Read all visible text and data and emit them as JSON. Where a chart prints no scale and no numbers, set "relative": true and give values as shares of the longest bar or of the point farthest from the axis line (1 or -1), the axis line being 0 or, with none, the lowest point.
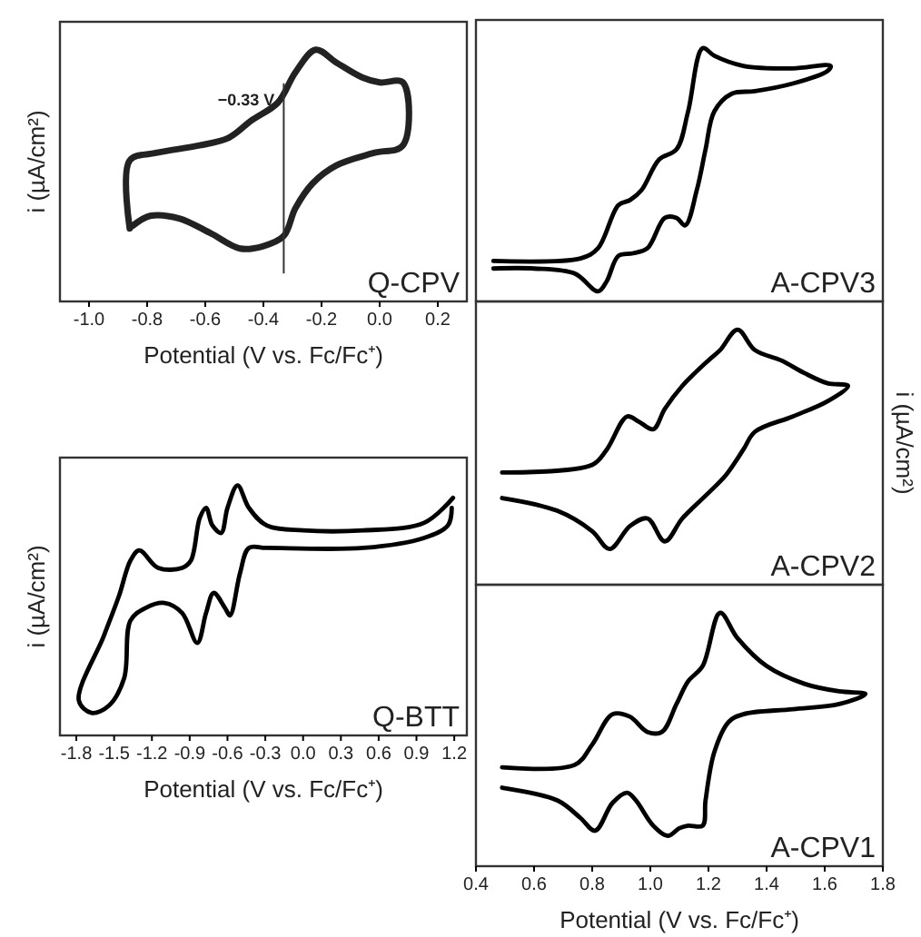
{
  "chart_data": [
    {
      "type": "line",
      "relative": true,
      "xlabel": "Potential (V vs. Fc/Fc⁺)",
      "ylabel": "i (µA/cm²)",
      "xlim": [
        -1.1,
        0.3
      ],
      "xticks": [
        {
          "value": -1,
          "label": "-1.0"
        },
        {
          "value": -0.8,
          "label": "-0.8"
        },
        {
          "value": -0.6,
          "label": "-0.6"
        },
        {
          "value": -0.4,
          "label": "-0.4"
        },
        {
          "value": -0.2,
          "label": "-0.2"
        },
        {
          "value": 0,
          "label": "0.0"
        },
        {
          "value": 0.2,
          "label": "0.2"
        }
      ],
      "series": [
        {
          "color": "#222222",
          "x": [
            -0.86,
            -0.86,
            -0.77,
            -0.62,
            -0.52,
            -0.44,
            -0.35,
            -0.29,
            -0.22,
            -0.15,
            -0.06,
            0.0,
            0.08,
            0.08,
            -0.02,
            -0.15,
            -0.23,
            -0.29,
            -0.33,
            -0.4,
            -0.48,
            -0.58,
            -0.69,
            -0.79,
            -0.85
          ],
          "values": [
            0.29,
            0.56,
            0.59,
            0.62,
            0.65,
            0.72,
            0.79,
            0.91,
            1,
            0.95,
            0.89,
            0.87,
            0.87,
            0.62,
            0.59,
            0.54,
            0.47,
            0.37,
            0.26,
            0.22,
            0.21,
            0.27,
            0.33,
            0.34,
            0.3
          ]
        }
      ],
      "ref_lines": [
        {
          "axis": "x",
          "value": -0.33,
          "label": "−0.33 V",
          "color": "#333333"
        }
      ],
      "annotations": [
        "Q-CPV"
      ]
    },
    {
      "type": "line",
      "relative": true,
      "xlim": [
        0.4,
        1.8
      ],
      "series": [
        {
          "color": "#000000",
          "x": [
            0.46,
            0.76,
            0.82,
            0.89,
            0.93,
            0.97,
            1.03,
            1.09,
            1.13,
            1.18,
            1.22,
            1.32,
            1.49,
            1.62,
            1.61,
            1.49,
            1.36,
            1.28,
            1.22,
            1.19,
            1.16,
            1.12,
            1.09,
            1.05,
            0.99,
            0.94,
            0.89,
            0.85,
            0.82,
            0.74,
            0.6,
            0.46
          ],
          "values": [
            0.16,
            0.17,
            0.21,
            0.38,
            0.4,
            0.44,
            0.56,
            0.6,
            0.75,
            1,
            0.97,
            0.93,
            0.92,
            0.93,
            0.91,
            0.86,
            0.83,
            0.82,
            0.75,
            0.6,
            0.44,
            0.3,
            0.33,
            0.33,
            0.21,
            0.19,
            0.18,
            0.08,
            0.04,
            0.11,
            0.13,
            0.13
          ]
        }
      ],
      "annotations": [
        "A-CPV3"
      ]
    },
    {
      "type": "line",
      "relative": true,
      "ylabel": "i (µA/cm²)",
      "xlim": [
        0.4,
        1.8
      ],
      "series": [
        {
          "color": "#000000",
          "x": [
            0.49,
            0.8,
            0.85,
            0.92,
            0.96,
            1.01,
            1.05,
            1.11,
            1.2,
            1.24,
            1.3,
            1.36,
            1.45,
            1.53,
            1.61,
            1.68,
            1.61,
            1.49,
            1.36,
            1.32,
            1.26,
            1.2,
            1.11,
            1.05,
            0.99,
            0.93,
            0.86,
            0.8,
            0.68,
            0.49
          ],
          "values": [
            0.44,
            0.47,
            0.53,
            0.66,
            0.64,
            0.61,
            0.69,
            0.78,
            0.88,
            0.92,
            1,
            0.92,
            0.88,
            0.83,
            0.79,
            0.78,
            0.72,
            0.66,
            0.6,
            0.53,
            0.43,
            0.36,
            0.26,
            0.17,
            0.26,
            0.23,
            0.14,
            0.21,
            0.29,
            0.34
          ]
        }
      ],
      "annotations": [
        "A-CPV2"
      ]
    },
    {
      "type": "line",
      "relative": true,
      "xlabel": "Potential (V vs. Fc/Fc⁺)",
      "ylabel": "i (µA/cm²)",
      "xlim": [
        -1.93,
        1.3
      ],
      "xticks": [
        {
          "value": -1.8,
          "label": "-1.8"
        },
        {
          "value": -1.5,
          "label": "-1.5"
        },
        {
          "value": -1.2,
          "label": "-1.2"
        },
        {
          "value": -0.9,
          "label": "-0.9"
        },
        {
          "value": -0.6,
          "label": "-0.6"
        },
        {
          "value": -0.3,
          "label": "-0.3"
        },
        {
          "value": 0,
          "label": "0.0"
        },
        {
          "value": 0.3,
          "label": "0.3"
        },
        {
          "value": 0.6,
          "label": "0.6"
        },
        {
          "value": 0.9,
          "label": "0.9"
        },
        {
          "value": 1.2,
          "label": "1.2"
        }
      ],
      "series": [
        {
          "color": "#000000",
          "x": [
            1.19,
            0.96,
            0.48,
            0.0,
            -0.29,
            -0.43,
            -0.52,
            -0.6,
            -0.65,
            -0.72,
            -0.77,
            -0.82,
            -0.89,
            -0.96,
            -1.15,
            -1.3,
            -1.37,
            -1.46,
            -1.58,
            -1.78,
            -1.68,
            -1.54,
            -1.42,
            -1.37,
            -1.25,
            -1.1,
            -0.96,
            -0.84,
            -0.77,
            -0.71,
            -0.62,
            -0.58,
            -0.5,
            -0.43,
            -0.29,
            0.48,
            0.96,
            1.15,
            1.18
          ],
          "values": [
            0.95,
            0.85,
            0.82,
            0.82,
            0.84,
            0.91,
            1,
            0.91,
            0.81,
            0.84,
            0.91,
            0.87,
            0.7,
            0.67,
            0.67,
            0.74,
            0.7,
            0.56,
            0.4,
            0.14,
            0.09,
            0.12,
            0.23,
            0.46,
            0.51,
            0.53,
            0.49,
            0.37,
            0.49,
            0.57,
            0.51,
            0.48,
            0.65,
            0.75,
            0.75,
            0.75,
            0.79,
            0.84,
            0.91
          ]
        }
      ],
      "annotations": [
        "Q-BTT"
      ]
    },
    {
      "type": "line",
      "relative": true,
      "xlabel": "Potential (V vs. Fc/Fc⁺)",
      "xlim": [
        0.4,
        1.8
      ],
      "xticks": [
        {
          "value": 0.4,
          "label": "0.4"
        },
        {
          "value": 0.6,
          "label": "0.6"
        },
        {
          "value": 0.8,
          "label": "0.8"
        },
        {
          "value": 1,
          "label": "1.0"
        },
        {
          "value": 1.2,
          "label": "1.2"
        },
        {
          "value": 1.4,
          "label": "1.4"
        },
        {
          "value": 1.6,
          "label": "1.6"
        },
        {
          "value": 1.8,
          "label": "1.8"
        }
      ],
      "series": [
        {
          "color": "#000000",
          "x": [
            0.49,
            0.74,
            0.8,
            0.87,
            0.93,
            0.99,
            1.04,
            1.09,
            1.13,
            1.18,
            1.24,
            1.3,
            1.4,
            1.53,
            1.65,
            1.74,
            1.65,
            1.49,
            1.32,
            1.27,
            1.22,
            1.19,
            1.18,
            1.13,
            1.1,
            1.06,
            1.01,
            0.95,
            0.92,
            0.87,
            0.81,
            0.76,
            0.68,
            0.49
          ],
          "values": [
            0.39,
            0.4,
            0.48,
            0.6,
            0.59,
            0.53,
            0.53,
            0.64,
            0.73,
            0.79,
            1,
            0.9,
            0.79,
            0.72,
            0.69,
            0.68,
            0.64,
            0.62,
            0.6,
            0.57,
            0.45,
            0.26,
            0.16,
            0.16,
            0.15,
            0.12,
            0.16,
            0.26,
            0.29,
            0.25,
            0.14,
            0.19,
            0.26,
            0.31
          ]
        }
      ],
      "annotations": [
        "A-CPV1"
      ]
    }
  ]
}
